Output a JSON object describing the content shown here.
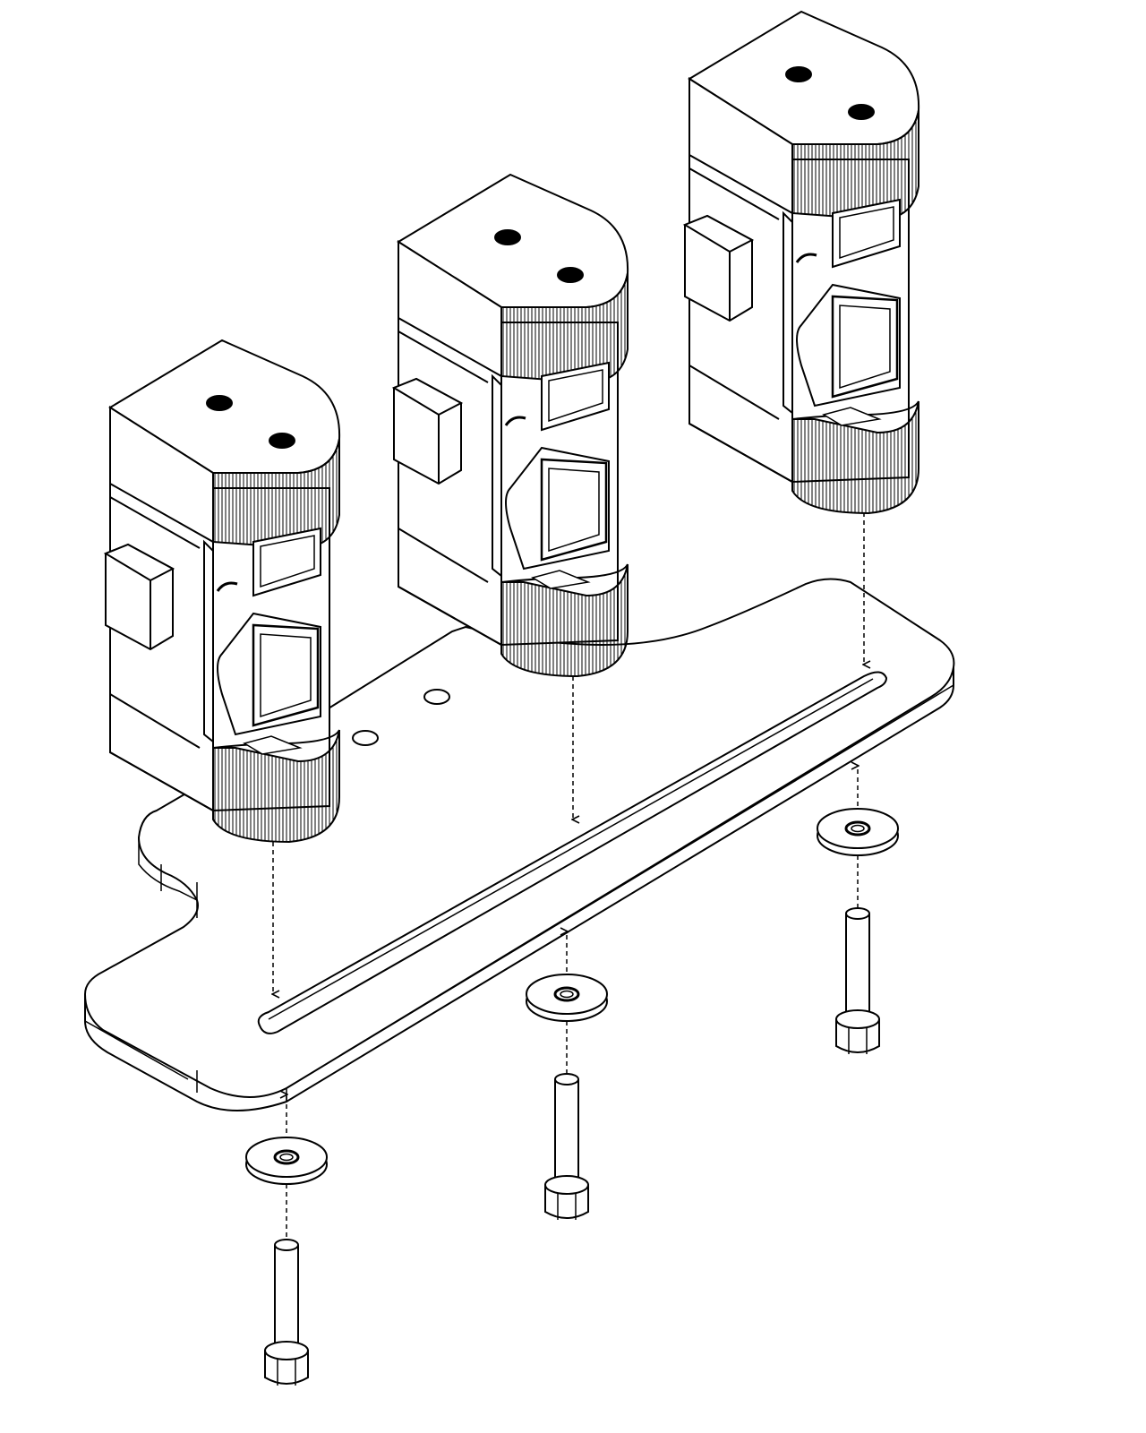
{
  "diagram": {
    "kind": "exploded-isometric-assembly",
    "style": {
      "line": "#000000",
      "fill": "#ffffff",
      "accent": "#000000"
    },
    "parts": {
      "blocks": 3,
      "base_plate": 1,
      "washers": 3,
      "bolts": 3
    },
    "icons": [
      "holder-block",
      "base-plate",
      "washer",
      "bolt",
      "dashed-arrow"
    ]
  }
}
